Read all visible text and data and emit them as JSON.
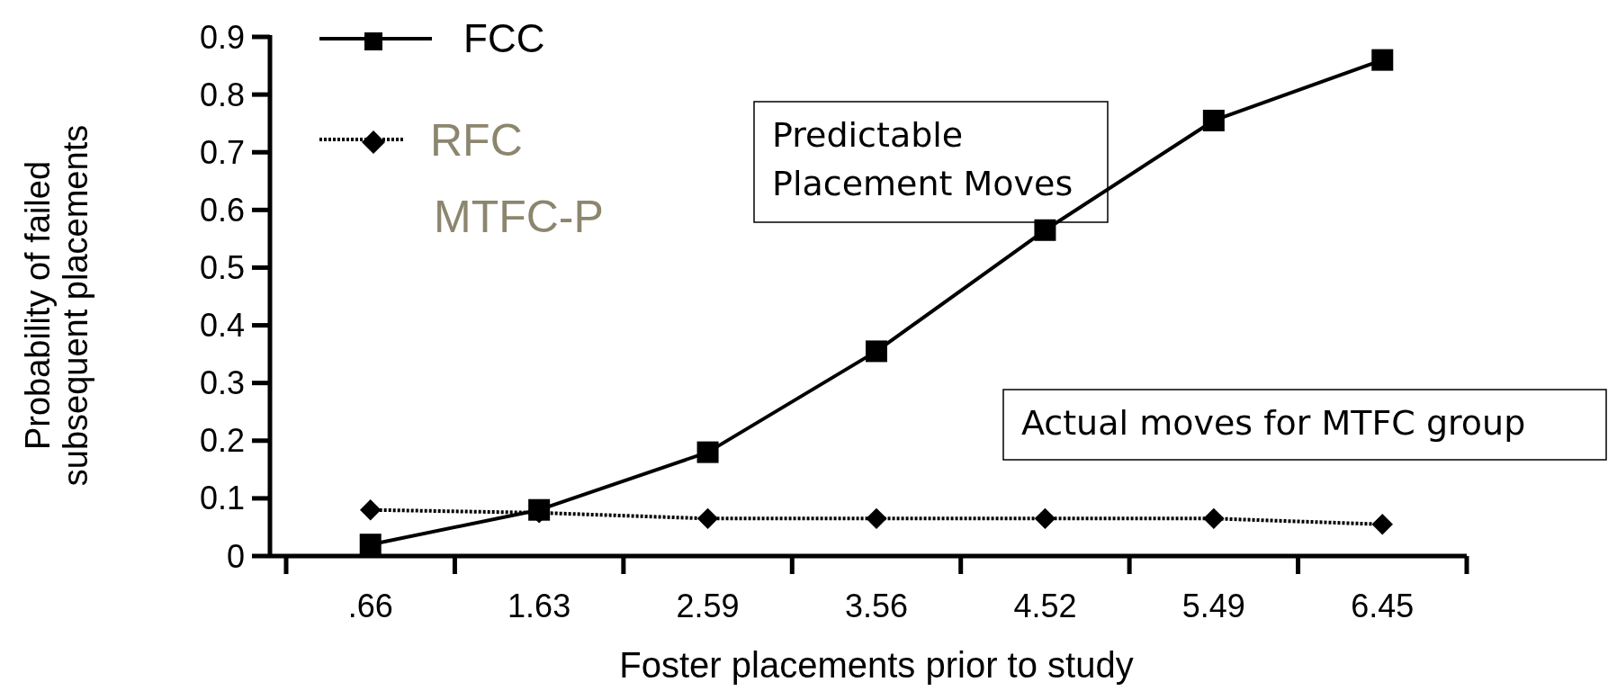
{
  "chart_data": {
    "type": "line",
    "xlabel": "Foster placements prior to study",
    "ylabel": "Probability of failed subsequent placements",
    "categories": [
      ".66",
      "1.63",
      "2.59",
      "3.56",
      "4.52",
      "5.49",
      "6.45"
    ],
    "series": [
      {
        "name": "FCC",
        "color": "#000000",
        "marker": "square",
        "line_style": "solid",
        "values": [
          0.02,
          0.08,
          0.18,
          0.355,
          0.565,
          0.755,
          0.86
        ]
      },
      {
        "name": "RFC",
        "color": "#000000",
        "marker": "diamond",
        "line_style": "dotted",
        "values": [
          0.08,
          0.075,
          0.065,
          0.065,
          0.065,
          0.065,
          0.055
        ]
      }
    ],
    "ylim": [
      0,
      0.9
    ],
    "yticks": [
      0,
      0.1,
      0.2,
      0.3,
      0.4,
      0.5,
      0.6,
      0.7,
      0.8,
      0.9
    ],
    "grid": false,
    "legend": "top left",
    "annotations": [
      "MTFC-P",
      "Predictable Placement Moves",
      "Actual moves for MTFC  group"
    ]
  }
}
